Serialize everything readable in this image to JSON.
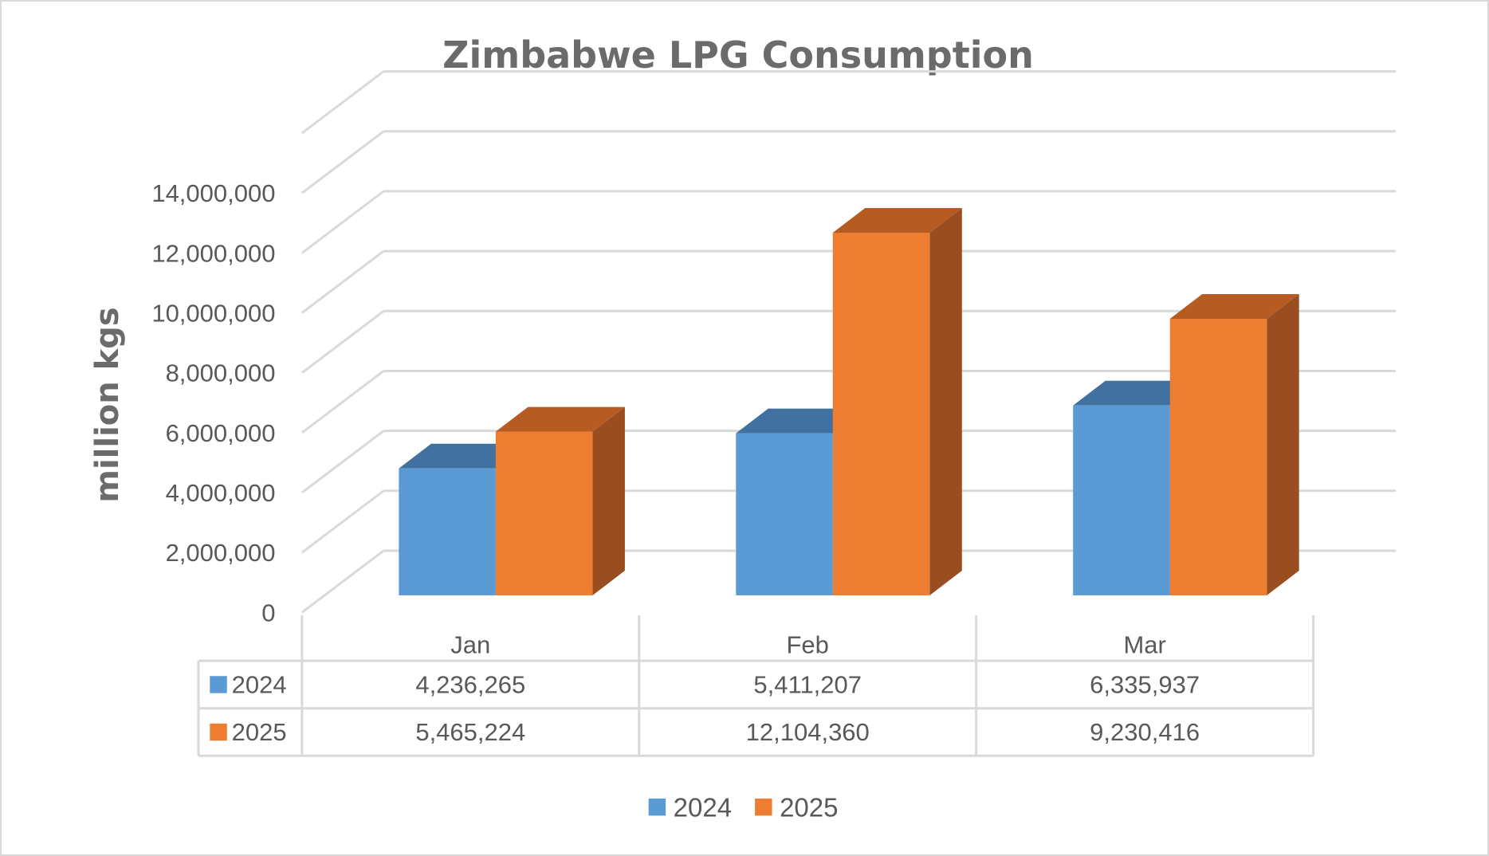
{
  "chart_data": {
    "type": "bar",
    "style": "3d-clustered-column-with-data-table",
    "title": "Zimbabwe LPG Consumption",
    "xlabel": "",
    "ylabel": "million kgs",
    "categories": [
      "Jan",
      "Feb",
      "Mar"
    ],
    "series": [
      {
        "name": "2024",
        "color": "#5b9bd5",
        "values": [
          4236265,
          5411207,
          6335937
        ],
        "labels": [
          "4,236,265",
          "5,411,207",
          "6,335,937"
        ]
      },
      {
        "name": "2025",
        "color": "#ed7d31",
        "values": [
          5465224,
          12104360,
          9230416
        ],
        "labels": [
          "5,465,224",
          "12,104,360",
          "9,230,416"
        ]
      }
    ],
    "ylim": [
      0,
      14000000
    ],
    "yticks": [
      0,
      2000000,
      4000000,
      6000000,
      8000000,
      10000000,
      12000000,
      14000000
    ],
    "ytick_labels": [
      "0",
      "2,000,000",
      "4,000,000",
      "6,000,000",
      "8,000,000",
      "10,000,000",
      "12,000,000",
      "14,000,000"
    ],
    "grid": true,
    "legend": "bottom",
    "data_table": true
  }
}
